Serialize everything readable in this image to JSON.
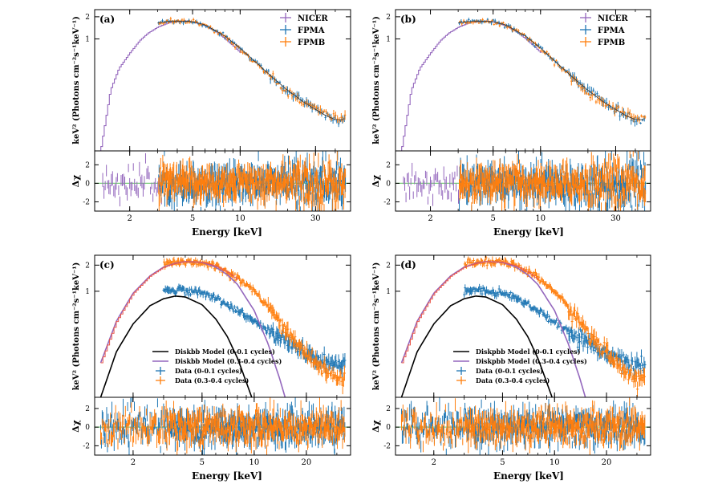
{
  "figure": {
    "x_label": "Energy [keV]",
    "y_label_top": "keV² (Photons cm⁻²s⁻¹keV⁻¹)",
    "y_label_resid": "Δχ"
  },
  "chart_data": [
    {
      "type": "scatter",
      "panel_label": "(a)",
      "xlabel": "Energy [keV]",
      "ylabel": "keV² (Photons cm⁻²s⁻¹keV⁻¹)",
      "xscale": "log",
      "yscale": "log",
      "xlim": [
        1.2,
        50
      ],
      "ylim": [
        0.03,
        2.5
      ],
      "x_ticks": [
        2,
        5,
        10,
        30
      ],
      "y_ticks": [
        1,
        2
      ],
      "resid_ylim": [
        -3,
        3.5
      ],
      "resid_ticks": [
        -2,
        0,
        2
      ],
      "legend_position": "top-right",
      "series": [
        {
          "name": "NICER",
          "color": "#9467bd",
          "x": [
            1.3,
            1.5,
            1.7,
            2.0,
            2.3,
            2.6,
            3.0,
            3.5,
            4.0,
            4.5,
            5.0,
            6.0,
            7.0,
            8.0,
            9.0,
            10.0
          ],
          "y": [
            0.03,
            0.2,
            0.4,
            0.65,
            0.95,
            1.2,
            1.45,
            1.65,
            1.72,
            1.75,
            1.7,
            1.5,
            1.25,
            1.0,
            0.8,
            0.65
          ]
        },
        {
          "name": "FPMA",
          "color": "#1f77b4",
          "x": [
            3.0,
            3.5,
            4.0,
            5.0,
            6.0,
            8.0,
            10.0,
            13.0,
            16.0,
            20.0,
            25.0,
            30.0,
            35.0,
            40.0
          ],
          "y": [
            1.65,
            1.72,
            1.75,
            1.72,
            1.55,
            1.1,
            0.75,
            0.45,
            0.3,
            0.2,
            0.14,
            0.11,
            0.09,
            0.08
          ]
        },
        {
          "name": "FPMB",
          "color": "#ff7f0e",
          "x": [
            3.0,
            3.5,
            4.0,
            5.0,
            6.0,
            8.0,
            10.0,
            13.0,
            16.0,
            20.0,
            25.0,
            30.0,
            35.0,
            40.0
          ],
          "y": [
            1.63,
            1.7,
            1.74,
            1.7,
            1.52,
            1.08,
            0.73,
            0.44,
            0.29,
            0.19,
            0.14,
            0.11,
            0.095,
            0.085
          ]
        }
      ]
    },
    {
      "type": "scatter",
      "panel_label": "(b)",
      "xlabel": "Energy [keV]",
      "ylabel": "keV² (Photons cm⁻²s⁻¹keV⁻¹)",
      "xscale": "log",
      "yscale": "log",
      "xlim": [
        1.2,
        50
      ],
      "ylim": [
        0.03,
        2.5
      ],
      "x_ticks": [
        2,
        5,
        10,
        30
      ],
      "y_ticks": [
        1,
        2
      ],
      "resid_ylim": [
        -3,
        3.5
      ],
      "resid_ticks": [
        -2,
        0,
        2
      ],
      "legend_position": "top-right",
      "series": [
        {
          "name": "NICER",
          "color": "#9467bd",
          "x": [
            1.3,
            1.5,
            1.7,
            2.0,
            2.3,
            2.6,
            3.0,
            3.5,
            4.0,
            4.5,
            5.0,
            6.0,
            7.0,
            8.0,
            9.0,
            10.0
          ],
          "y": [
            0.03,
            0.2,
            0.4,
            0.65,
            0.95,
            1.2,
            1.45,
            1.65,
            1.72,
            1.75,
            1.7,
            1.5,
            1.25,
            1.0,
            0.8,
            0.65
          ]
        },
        {
          "name": "FPMA",
          "color": "#1f77b4",
          "x": [
            3.0,
            3.5,
            4.0,
            5.0,
            6.0,
            8.0,
            10.0,
            13.0,
            16.0,
            20.0,
            25.0,
            30.0,
            35.0,
            40.0
          ],
          "y": [
            1.65,
            1.72,
            1.75,
            1.72,
            1.55,
            1.1,
            0.75,
            0.45,
            0.3,
            0.2,
            0.14,
            0.11,
            0.09,
            0.08
          ]
        },
        {
          "name": "FPMB",
          "color": "#ff7f0e",
          "x": [
            3.0,
            3.5,
            4.0,
            5.0,
            6.0,
            8.0,
            10.0,
            13.0,
            16.0,
            20.0,
            25.0,
            30.0,
            35.0,
            40.0
          ],
          "y": [
            1.63,
            1.7,
            1.74,
            1.7,
            1.52,
            1.08,
            0.73,
            0.44,
            0.29,
            0.19,
            0.14,
            0.11,
            0.095,
            0.085
          ]
        }
      ]
    },
    {
      "type": "scatter",
      "panel_label": "(c)",
      "xlabel": "Energy [keV]",
      "ylabel": "keV² (Photons cm⁻²s⁻¹keV⁻¹)",
      "xscale": "log",
      "yscale": "log",
      "xlim": [
        1.2,
        36
      ],
      "ylim": [
        0.06,
        2.6
      ],
      "x_ticks": [
        2,
        5,
        10,
        20
      ],
      "y_ticks": [
        1,
        2
      ],
      "resid_ylim": [
        -3,
        3.2
      ],
      "resid_ticks": [
        -2,
        0,
        2
      ],
      "legend_position": "bottom-center",
      "series": [
        {
          "name": "Diskbb Model (0-0.1 cycles)",
          "kind": "line",
          "color": "#000000",
          "x": [
            1.3,
            1.6,
            2.0,
            2.5,
            3.0,
            3.5,
            4.0,
            5.0,
            6.0,
            7.0,
            8.0,
            9.0,
            10.0
          ],
          "y": [
            0.06,
            0.2,
            0.42,
            0.68,
            0.82,
            0.88,
            0.86,
            0.7,
            0.48,
            0.3,
            0.17,
            0.09,
            0.05
          ]
        },
        {
          "name": "Diskbb Model (0.3-0.4 cycles)",
          "kind": "line",
          "color": "#9467bd",
          "x": [
            1.3,
            1.6,
            2.0,
            2.5,
            3.0,
            3.5,
            4.0,
            5.0,
            6.0,
            7.0,
            8.0,
            10.0,
            12.0,
            14.0,
            16.0
          ],
          "y": [
            0.15,
            0.45,
            0.95,
            1.5,
            1.9,
            2.1,
            2.2,
            2.15,
            1.9,
            1.55,
            1.2,
            0.6,
            0.25,
            0.1,
            0.04
          ]
        },
        {
          "name": "Data (0-0.1 cycles)",
          "kind": "points",
          "color": "#1f77b4",
          "x": [
            3.0,
            3.5,
            4.0,
            5.0,
            6.0,
            8.0,
            10.0,
            12.0,
            15.0,
            18.0,
            22.0,
            26.0,
            30.0
          ],
          "y": [
            1.0,
            1.05,
            1.02,
            0.95,
            0.85,
            0.6,
            0.45,
            0.35,
            0.27,
            0.22,
            0.17,
            0.15,
            0.14
          ]
        },
        {
          "name": "Data (0.3-0.4 cycles)",
          "kind": "points",
          "color": "#ff7f0e",
          "x": [
            3.0,
            3.5,
            4.0,
            5.0,
            6.0,
            8.0,
            10.0,
            12.0,
            15.0,
            18.0,
            22.0,
            26.0,
            30.0
          ],
          "y": [
            2.05,
            2.15,
            2.2,
            2.15,
            1.95,
            1.45,
            1.0,
            0.65,
            0.38,
            0.24,
            0.16,
            0.12,
            0.1
          ]
        }
      ],
      "extra_lines": [
        {
          "color": "#e9574a",
          "x": [
            1.3,
            1.6,
            2.0,
            2.5,
            3.0,
            3.5,
            4.0,
            5.0,
            6.0,
            7.0,
            8.0
          ],
          "y": [
            0.15,
            0.45,
            0.95,
            1.5,
            1.9,
            2.1,
            2.2,
            2.15,
            1.95,
            1.65,
            1.35
          ]
        }
      ]
    },
    {
      "type": "scatter",
      "panel_label": "(d)",
      "xlabel": "Energy [keV]",
      "ylabel": "keV² (Photons cm⁻²s⁻¹keV⁻¹)",
      "xscale": "log",
      "yscale": "log",
      "xlim": [
        1.2,
        36
      ],
      "ylim": [
        0.06,
        2.6
      ],
      "x_ticks": [
        2,
        5,
        10,
        20
      ],
      "y_ticks": [
        1,
        2
      ],
      "resid_ylim": [
        -3,
        3.2
      ],
      "resid_ticks": [
        -2,
        0,
        2
      ],
      "legend_position": "bottom-center",
      "series": [
        {
          "name": "Diskpbb Model (0-0.1 cycles)",
          "kind": "line",
          "color": "#000000",
          "x": [
            1.3,
            1.6,
            2.0,
            2.5,
            3.0,
            3.5,
            4.0,
            5.0,
            6.0,
            7.0,
            8.0,
            9.0,
            10.0
          ],
          "y": [
            0.06,
            0.2,
            0.42,
            0.68,
            0.82,
            0.88,
            0.86,
            0.7,
            0.48,
            0.3,
            0.17,
            0.09,
            0.05
          ]
        },
        {
          "name": "Diskpbb Model (0.3-0.4 cycles)",
          "kind": "line",
          "color": "#9467bd",
          "x": [
            1.3,
            1.6,
            2.0,
            2.5,
            3.0,
            3.5,
            4.0,
            5.0,
            6.0,
            7.0,
            8.0,
            10.0,
            12.0,
            14.0,
            16.0
          ],
          "y": [
            0.15,
            0.45,
            0.95,
            1.5,
            1.9,
            2.1,
            2.2,
            2.15,
            1.9,
            1.55,
            1.2,
            0.6,
            0.25,
            0.1,
            0.04
          ]
        },
        {
          "name": "Data (0-0.1 cycles)",
          "kind": "points",
          "color": "#1f77b4",
          "x": [
            3.0,
            3.5,
            4.0,
            5.0,
            6.0,
            8.0,
            10.0,
            12.0,
            15.0,
            18.0,
            22.0,
            26.0,
            30.0
          ],
          "y": [
            1.0,
            1.05,
            1.02,
            0.95,
            0.85,
            0.6,
            0.45,
            0.35,
            0.27,
            0.22,
            0.17,
            0.15,
            0.14
          ]
        },
        {
          "name": "Data (0.3-0.4 cycles)",
          "kind": "points",
          "color": "#ff7f0e",
          "x": [
            3.0,
            3.5,
            4.0,
            5.0,
            6.0,
            8.0,
            10.0,
            12.0,
            15.0,
            18.0,
            22.0,
            26.0,
            30.0
          ],
          "y": [
            2.05,
            2.15,
            2.2,
            2.15,
            1.95,
            1.45,
            1.0,
            0.65,
            0.38,
            0.24,
            0.16,
            0.12,
            0.1
          ]
        }
      ],
      "extra_lines": [
        {
          "color": "#e9574a",
          "x": [
            1.3,
            1.6,
            2.0,
            2.5,
            3.0,
            3.5,
            4.0,
            5.0,
            6.0,
            7.0,
            8.0
          ],
          "y": [
            0.15,
            0.45,
            0.95,
            1.5,
            1.9,
            2.1,
            2.2,
            2.15,
            1.95,
            1.65,
            1.35
          ]
        }
      ]
    }
  ],
  "colors": {
    "nicer": "#9467bd",
    "fpma": "#1f77b4",
    "fpmb": "#ff7f0e",
    "zero_line": "#7ed07e",
    "total_model": "#e9574a"
  }
}
